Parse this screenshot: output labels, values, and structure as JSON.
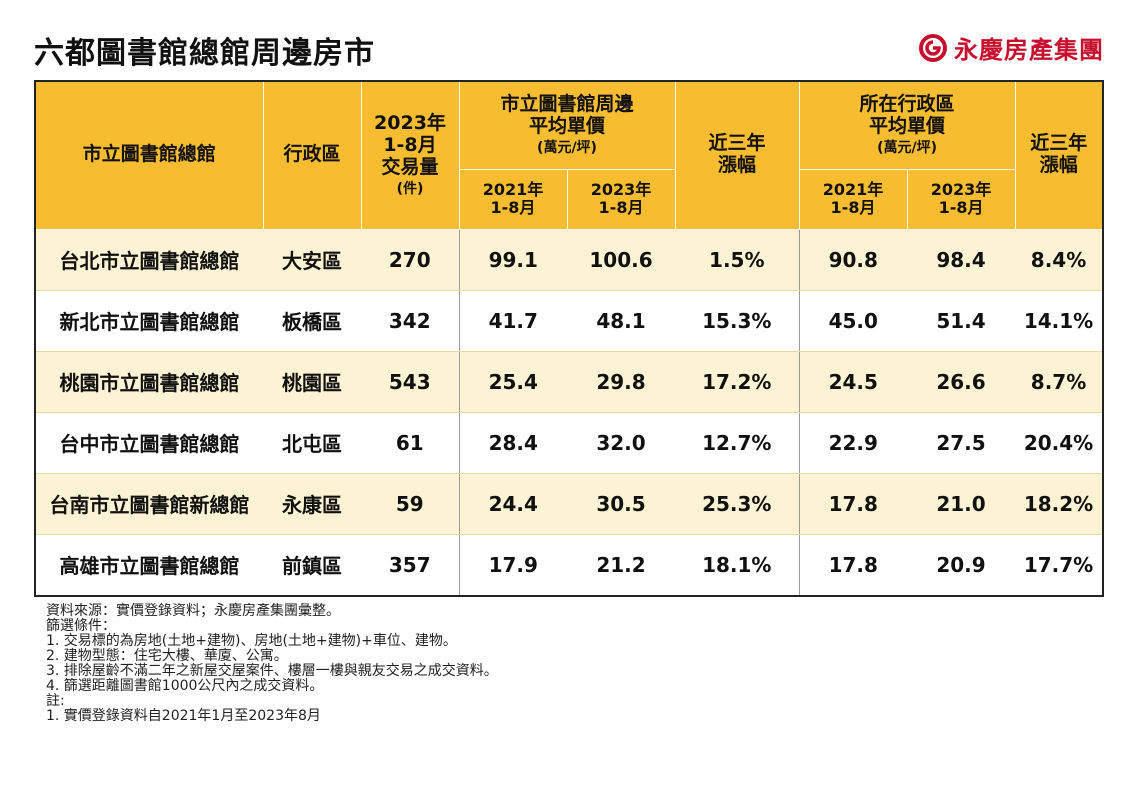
{
  "title": "六都圖書館總館周邊房市",
  "brand": {
    "name": "永慶房產集團",
    "logo_icon": "yungching-logo-icon",
    "color": "#c8102e"
  },
  "table": {
    "header": {
      "library": "市立圖書館總館",
      "district": "行政區",
      "volume_line1": "2023年",
      "volume_line2": "1-8月",
      "volume_line3": "交易量",
      "volume_unit": "(件)",
      "nearby_line1": "市立圖書館周邊",
      "nearby_line2": "平均單價",
      "nearby_unit": "(萬元/坪)",
      "growth_line1": "近三年",
      "growth_line2": "漲幅",
      "district_avg_line1": "所在行政區",
      "district_avg_line2": "平均單價",
      "district_avg_unit": "(萬元/坪)",
      "year2021": "2021年",
      "year2023": "2023年",
      "period": "1-8月"
    }
  },
  "chart_data": {
    "type": "table",
    "columns": [
      "市立圖書館總館",
      "行政區",
      "2023年1-8月交易量(件)",
      "市立圖書館周邊平均單價 2021年1-8月",
      "市立圖書館周邊平均單價 2023年1-8月",
      "近三年漲幅",
      "所在行政區平均單價 2021年1-8月",
      "所在行政區平均單價 2023年1-8月",
      "近三年漲幅"
    ],
    "rows": [
      [
        "台北市立圖書館總館",
        "大安區",
        "270",
        "99.1",
        "100.6",
        "1.5%",
        "90.8",
        "98.4",
        "8.4%"
      ],
      [
        "新北市立圖書館總館",
        "板橋區",
        "342",
        "41.7",
        "48.1",
        "15.3%",
        "45.0",
        "51.4",
        "14.1%"
      ],
      [
        "桃園市立圖書館總館",
        "桃園區",
        "543",
        "25.4",
        "29.8",
        "17.2%",
        "24.5",
        "26.6",
        "8.7%"
      ],
      [
        "台中市立圖書館總館",
        "北屯區",
        "61",
        "28.4",
        "32.0",
        "12.7%",
        "22.9",
        "27.5",
        "20.4%"
      ],
      [
        "台南市立圖書館新總館",
        "永康區",
        "59",
        "24.4",
        "30.5",
        "25.3%",
        "17.8",
        "21.0",
        "18.2%"
      ],
      [
        "高雄市立圖書館總館",
        "前鎮區",
        "357",
        "17.9",
        "21.2",
        "18.1%",
        "17.8",
        "20.9",
        "17.7%"
      ]
    ],
    "header_color": "#f7bc2f",
    "stripe_color": "#fdf2d3"
  },
  "notes": [
    "資料來源：實價登錄資料；永慶房產集團彙整。",
    "篩選條件：",
    "1. 交易標的為房地(土地+建物)、房地(土地+建物)+車位、建物。",
    "2. 建物型態：住宅大樓、華廈、公寓。",
    "3. 排除屋齡不滿二年之新屋交屋案件、樓層一樓與親友交易之成交資料。",
    "4. 篩選距離圖書館1000公尺內之成交資料。",
    "註:",
    "1. 實價登錄資料自2021年1月至2023年8月"
  ]
}
